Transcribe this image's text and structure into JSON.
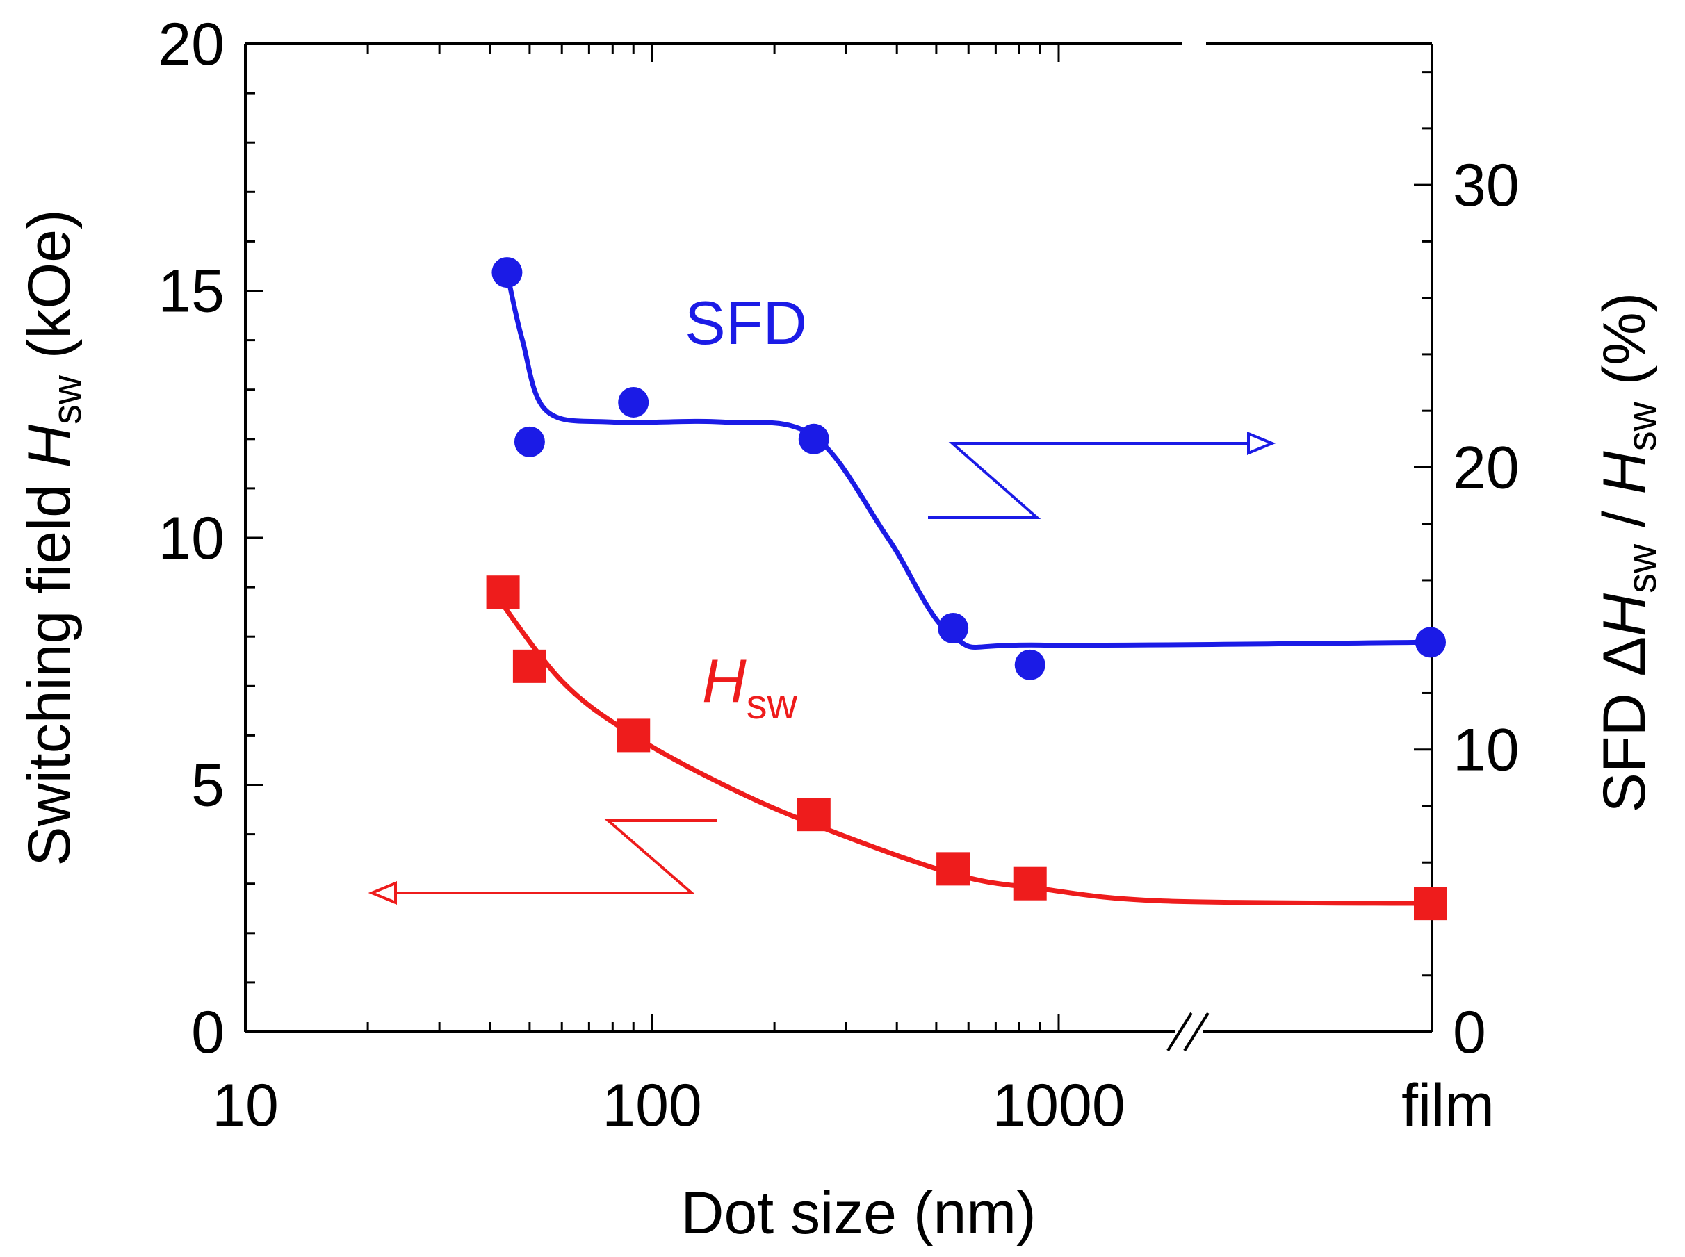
{
  "chart_data": {
    "type": "scatter",
    "xlabel": "Dot size (nm)",
    "x_scale": "log",
    "xlim": [
      10,
      2000
    ],
    "x_ticks": [
      "10",
      "100",
      "1000",
      "film"
    ],
    "y_left": {
      "label_parts": [
        "Switching field ",
        "H",
        "sw",
        " (kOe)"
      ],
      "ylim": [
        0,
        20
      ],
      "ticks": [
        "0",
        "5",
        "10",
        "15",
        "20"
      ]
    },
    "y_right": {
      "label_parts": [
        "SFD Δ",
        "H",
        "sw",
        " / ",
        "H",
        "sw",
        " (%)"
      ],
      "ylim": [
        0,
        35
      ],
      "ticks": [
        "0",
        "10",
        "20",
        "30"
      ]
    },
    "series": [
      {
        "name": "SFD",
        "axis": "right",
        "color": "#1b1be6",
        "marker": "circle",
        "x": [
          44,
          50,
          90,
          250,
          550,
          850,
          "film"
        ],
        "y": [
          26.9,
          20.9,
          22.3,
          21.0,
          14.3,
          13.0,
          13.8
        ]
      },
      {
        "name_parts": [
          "H",
          "sw"
        ],
        "axis": "left",
        "color": "#ee1c1c",
        "marker": "square",
        "x": [
          43,
          50,
          90,
          250,
          550,
          850,
          "film"
        ],
        "y": [
          8.9,
          7.4,
          6.0,
          4.4,
          3.3,
          3.0,
          2.6
        ]
      }
    ],
    "axis_break": "between 1000 and film",
    "grid": false
  }
}
